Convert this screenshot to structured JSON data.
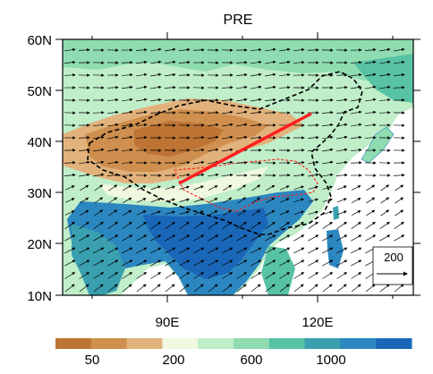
{
  "map": {
    "title": "PRE",
    "lat_ticks": [
      "60N",
      "50N",
      "40N",
      "30N",
      "20N",
      "10N"
    ],
    "lon_ticks": [
      "90E",
      "120E"
    ],
    "reference_vector": {
      "value": "200"
    },
    "colors": {
      "precip_low": "#c47a3b",
      "precip_high": "#1a67b8",
      "red_line": "#ff1f1f",
      "boundary": "#000000"
    }
  },
  "colorbar": {
    "labels": [
      "50",
      "200",
      "600",
      "1000"
    ],
    "colors": [
      "#bd7434",
      "#cf8f4e",
      "#e2b27c",
      "#f0f8e0",
      "#bfeec9",
      "#8fdcb0",
      "#58c2a4",
      "#3aa0b0",
      "#2c87c0",
      "#1a67b8"
    ]
  }
}
